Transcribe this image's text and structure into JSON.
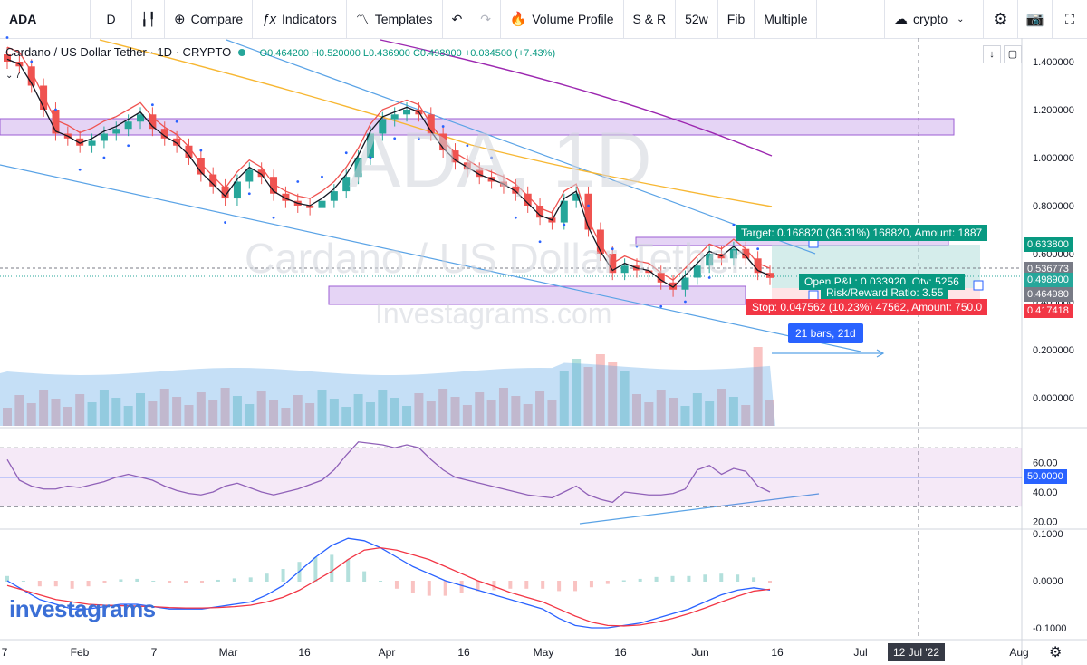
{
  "toolbar": {
    "symbol": "ADA",
    "interval": "D",
    "compare": "Compare",
    "indicators": "Indicators",
    "templates": "Templates",
    "volume_profile": "Volume Profile",
    "sr": "S & R",
    "w52": "52w",
    "fib": "Fib",
    "multiple": "Multiple",
    "layout_name": "crypto"
  },
  "legend": {
    "title": "Cardano / US Dollar Tether · 1D · CRYPTO",
    "ohlc": "O0.464200 H0.520000 L0.436900 C0.498900 +0.034500 (+7.43%)",
    "badge": "7"
  },
  "watermarks": {
    "symbol": "ADA, 1D",
    "name": "Cardano / US Dollar Tether",
    "site": "Investagrams.com"
  },
  "logo": "investagrams",
  "position_tool": {
    "target": "Target: 0.168820 (36.31%) 168820, Amount: 1887",
    "open_pl": "Open P&L: 0.033920, Qty: 5256",
    "rr": "Risk/Reward Ratio: 3.55",
    "stop": "Stop: 0.047562 (10.23%) 47562, Amount: 750.0",
    "bars": "21 bars, 21d"
  },
  "price_tags": {
    "target": "0.633800",
    "dashed": "0.536773",
    "last": "0.498900",
    "entry": "0.464980",
    "stop": "0.417418",
    "rsi_mid": "50.0000"
  },
  "x_axis": {
    "labels": [
      "7",
      "Feb",
      "7",
      "Mar",
      "16",
      "Apr",
      "16",
      "May",
      "16",
      "Jun",
      "16",
      "Jul",
      "Aug"
    ],
    "cursor_date": "12 Jul '22"
  },
  "colors": {
    "up": "#26a69a",
    "down": "#ef5350",
    "zone": "#d3b8ef",
    "zone_border": "#9c5ed4",
    "trend": "#5aa3e6",
    "rsi_line": "#9061b8",
    "macd": "#2962ff",
    "signal": "#f23645"
  },
  "chart_data": [
    {
      "type": "candlestick",
      "title": "Cardano / US Dollar Tether",
      "ylim": [
        -0.08,
        1.5
      ],
      "yticks": [
        0.0,
        0.2,
        0.4,
        0.6,
        0.8,
        1.0,
        1.2,
        1.4
      ],
      "close_approx": [
        1.4,
        1.38,
        1.3,
        1.2,
        1.1,
        1.08,
        1.05,
        1.07,
        1.1,
        1.12,
        1.15,
        1.18,
        1.12,
        1.08,
        1.05,
        1.0,
        0.93,
        0.88,
        0.83,
        0.9,
        0.95,
        0.92,
        0.85,
        0.82,
        0.8,
        0.79,
        0.82,
        0.86,
        0.92,
        1.0,
        1.1,
        1.16,
        1.18,
        1.2,
        1.18,
        1.1,
        1.03,
        0.98,
        0.95,
        0.92,
        0.9,
        0.88,
        0.85,
        0.8,
        0.75,
        0.73,
        0.82,
        0.85,
        0.7,
        0.6,
        0.52,
        0.55,
        0.53,
        0.52,
        0.48,
        0.45,
        0.5,
        0.55,
        0.6,
        0.58,
        0.62,
        0.58,
        0.52,
        0.4989
      ],
      "last_close": 0.4989
    },
    {
      "type": "line",
      "title": "RSI",
      "ylim": [
        17,
        83
      ],
      "yticks": [
        20,
        40,
        60
      ],
      "band": [
        30,
        70
      ],
      "midline": 50,
      "values": [
        62,
        48,
        44,
        42,
        42,
        44,
        43,
        45,
        47,
        50,
        52,
        50,
        48,
        44,
        41,
        39,
        38,
        40,
        44,
        46,
        43,
        40,
        38,
        40,
        42,
        45,
        48,
        55,
        65,
        74,
        73,
        72,
        70,
        72,
        70,
        62,
        55,
        50,
        48,
        46,
        44,
        42,
        40,
        38,
        37,
        36,
        40,
        44,
        38,
        35,
        33,
        40,
        39,
        38,
        38,
        39,
        42,
        55,
        58,
        52,
        56,
        54,
        44,
        40
      ]
    },
    {
      "type": "line",
      "title": "MACD",
      "ylim": [
        -0.12,
        0.1
      ],
      "yticks": [
        0.1,
        0.0,
        -0.1
      ],
      "series": [
        {
          "values": [
            0.0,
            -0.02,
            -0.04,
            -0.05,
            -0.06,
            -0.06,
            -0.055,
            -0.05,
            -0.05,
            -0.055,
            -0.06,
            -0.06,
            -0.06,
            -0.055,
            -0.05,
            -0.045,
            -0.03,
            -0.01,
            0.02,
            0.05,
            0.075,
            0.09,
            0.085,
            0.07,
            0.05,
            0.03,
            0.015,
            0.0,
            -0.01,
            -0.02,
            -0.03,
            -0.04,
            -0.05,
            -0.06,
            -0.08,
            -0.095,
            -0.1,
            -0.1,
            -0.095,
            -0.09,
            -0.08,
            -0.07,
            -0.06,
            -0.045,
            -0.03,
            -0.02,
            -0.015,
            -0.02
          ]
        },
        {
          "values": [
            -0.01,
            -0.02,
            -0.03,
            -0.04,
            -0.045,
            -0.05,
            -0.052,
            -0.053,
            -0.054,
            -0.055,
            -0.057,
            -0.058,
            -0.058,
            -0.057,
            -0.055,
            -0.052,
            -0.045,
            -0.035,
            -0.02,
            0.0,
            0.02,
            0.045,
            0.065,
            0.07,
            0.065,
            0.055,
            0.045,
            0.03,
            0.015,
            0.0,
            -0.012,
            -0.025,
            -0.035,
            -0.045,
            -0.06,
            -0.075,
            -0.088,
            -0.095,
            -0.096,
            -0.094,
            -0.088,
            -0.08,
            -0.07,
            -0.058,
            -0.045,
            -0.033,
            -0.022,
            -0.018
          ]
        }
      ]
    }
  ]
}
